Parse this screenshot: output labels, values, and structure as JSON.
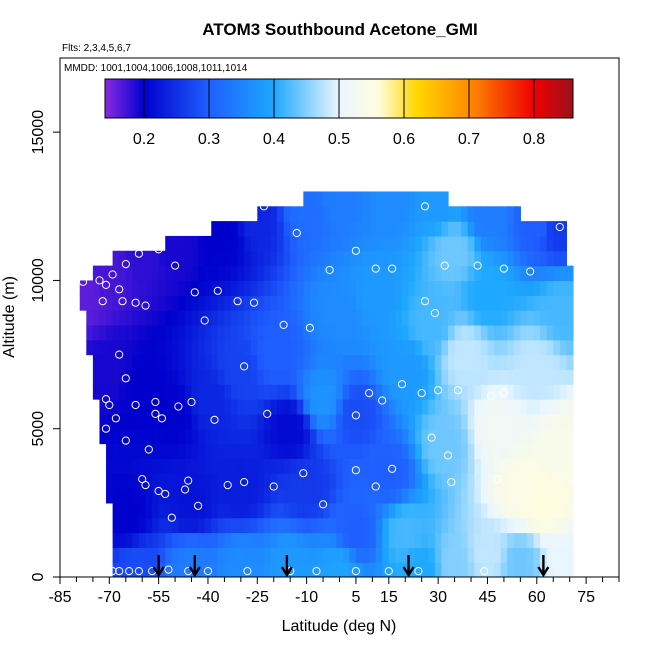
{
  "chart_data": {
    "type": "heatmap",
    "title": "ATOM3 Southbound Acetone_GMI",
    "flights_label": "Flts: 2,3,4,5,6,7",
    "mmdd_label": "MMDD: 1001,1004,1006,1008,1011,1014",
    "xlabel": "Latitude (deg N)",
    "ylabel": "Altitude (m)",
    "xlim": [
      -85,
      85
    ],
    "ylim": [
      0,
      17500
    ],
    "x_ticks": [
      -85,
      -70,
      -55,
      -40,
      -25,
      -10,
      5,
      15,
      30,
      45,
      60,
      75
    ],
    "x_minor_ticks": [
      -80,
      -75,
      -65,
      -60,
      -50,
      -45,
      -35,
      -30,
      -20,
      -15,
      -5,
      0,
      10,
      20,
      25,
      35,
      40,
      50,
      55,
      65,
      70,
      80,
      85
    ],
    "y_ticks": [
      0,
      5000,
      10000,
      15000
    ],
    "colorbar": {
      "range": [
        0.14,
        0.86
      ],
      "ticks": [
        0.2,
        0.3,
        0.4,
        0.5,
        0.6,
        0.7,
        0.8
      ],
      "tick_labels": [
        "0.2",
        "0.3",
        "0.4",
        "0.5",
        "0.6",
        "0.7",
        "0.8"
      ],
      "stops": [
        {
          "v": 0.14,
          "c": "#8a2be2"
        },
        {
          "v": 0.2,
          "c": "#0000cd"
        },
        {
          "v": 0.3,
          "c": "#1f5fff"
        },
        {
          "v": 0.4,
          "c": "#1ea8ff"
        },
        {
          "v": 0.5,
          "c": "#eaf6ff"
        },
        {
          "v": 0.56,
          "c": "#fffde0"
        },
        {
          "v": 0.62,
          "c": "#ffd700"
        },
        {
          "v": 0.7,
          "c": "#ff8c00"
        },
        {
          "v": 0.8,
          "c": "#ee0000"
        },
        {
          "v": 0.86,
          "c": "#9b111e"
        }
      ]
    },
    "field_boundary": {
      "upper": [
        [
          -80,
          10000
        ],
        [
          -75,
          10300
        ],
        [
          -70,
          10700
        ],
        [
          -65,
          10900
        ],
        [
          -55,
          11200
        ],
        [
          -45,
          11500
        ],
        [
          -35,
          11900
        ],
        [
          -25,
          12250
        ],
        [
          -15,
          12700
        ],
        [
          0,
          12900
        ],
        [
          15,
          12950
        ],
        [
          30,
          12800
        ],
        [
          45,
          12500
        ],
        [
          60,
          12150
        ],
        [
          68,
          11900
        ],
        [
          70,
          10500
        ]
      ],
      "lower_right": [
        [
          72,
          3000
        ],
        [
          72,
          0
        ]
      ],
      "lower_left": [
        [
          -68,
          0
        ],
        [
          -70,
          2500
        ],
        [
          -75,
          7000
        ],
        [
          -80,
          10000
        ]
      ]
    },
    "anchors": [
      {
        "lat": -78,
        "alt": 9500,
        "v": 0.16
      },
      {
        "lat": -70,
        "alt": 10300,
        "v": 0.17
      },
      {
        "lat": -60,
        "alt": 10900,
        "v": 0.18
      },
      {
        "lat": -50,
        "alt": 11200,
        "v": 0.19
      },
      {
        "lat": -35,
        "alt": 11500,
        "v": 0.2
      },
      {
        "lat": -25,
        "alt": 12000,
        "v": 0.24
      },
      {
        "lat": -10,
        "alt": 12500,
        "v": 0.32
      },
      {
        "lat": 0,
        "alt": 12800,
        "v": 0.34
      },
      {
        "lat": 15,
        "alt": 12700,
        "v": 0.36
      },
      {
        "lat": 30,
        "alt": 12700,
        "v": 0.38
      },
      {
        "lat": 45,
        "alt": 12200,
        "v": 0.34
      },
      {
        "lat": 60,
        "alt": 12000,
        "v": 0.3
      },
      {
        "lat": 67,
        "alt": 11800,
        "v": 0.26
      },
      {
        "lat": -70,
        "alt": 7000,
        "v": 0.19
      },
      {
        "lat": -60,
        "alt": 6500,
        "v": 0.2
      },
      {
        "lat": -50,
        "alt": 5500,
        "v": 0.2
      },
      {
        "lat": -40,
        "alt": 6000,
        "v": 0.24
      },
      {
        "lat": -30,
        "alt": 7000,
        "v": 0.27
      },
      {
        "lat": -20,
        "alt": 7500,
        "v": 0.3
      },
      {
        "lat": -15,
        "alt": 5000,
        "v": 0.21
      },
      {
        "lat": -10,
        "alt": 3000,
        "v": 0.26
      },
      {
        "lat": -30,
        "alt": 3000,
        "v": 0.23
      },
      {
        "lat": -45,
        "alt": 2500,
        "v": 0.22
      },
      {
        "lat": -65,
        "alt": 2000,
        "v": 0.2
      },
      {
        "lat": -62,
        "alt": 300,
        "v": 0.28
      },
      {
        "lat": -45,
        "alt": 300,
        "v": 0.34
      },
      {
        "lat": -30,
        "alt": 300,
        "v": 0.36
      },
      {
        "lat": -15,
        "alt": 300,
        "v": 0.38
      },
      {
        "lat": 0,
        "alt": 300,
        "v": 0.39
      },
      {
        "lat": 5,
        "alt": 1500,
        "v": 0.3
      },
      {
        "lat": 0,
        "alt": 9000,
        "v": 0.36
      },
      {
        "lat": -5,
        "alt": 6000,
        "v": 0.37
      },
      {
        "lat": 10,
        "alt": 9500,
        "v": 0.38
      },
      {
        "lat": 5,
        "alt": 5500,
        "v": 0.28
      },
      {
        "lat": 15,
        "alt": 3500,
        "v": 0.3
      },
      {
        "lat": 20,
        "alt": 7000,
        "v": 0.38
      },
      {
        "lat": 20,
        "alt": 1500,
        "v": 0.42
      },
      {
        "lat": 28,
        "alt": 8500,
        "v": 0.42
      },
      {
        "lat": 32,
        "alt": 4500,
        "v": 0.44
      },
      {
        "lat": 38,
        "alt": 7500,
        "v": 0.48
      },
      {
        "lat": 35,
        "alt": 11000,
        "v": 0.44
      },
      {
        "lat": 45,
        "alt": 9500,
        "v": 0.4
      },
      {
        "lat": 48,
        "alt": 5000,
        "v": 0.52
      },
      {
        "lat": 55,
        "alt": 3000,
        "v": 0.55
      },
      {
        "lat": 62,
        "alt": 2500,
        "v": 0.56
      },
      {
        "lat": 68,
        "alt": 4500,
        "v": 0.54
      },
      {
        "lat": 60,
        "alt": 7000,
        "v": 0.48
      },
      {
        "lat": 68,
        "alt": 9000,
        "v": 0.42
      },
      {
        "lat": 35,
        "alt": 500,
        "v": 0.45
      },
      {
        "lat": 45,
        "alt": 800,
        "v": 0.48
      },
      {
        "lat": 55,
        "alt": 500,
        "v": 0.44
      },
      {
        "lat": 68,
        "alt": 500,
        "v": 0.5
      },
      {
        "lat": 25,
        "alt": 300,
        "v": 0.4
      }
    ],
    "obs_points": [
      [
        -81,
        9950
      ],
      [
        -78,
        9950
      ],
      [
        -73,
        10000
      ],
      [
        -71,
        9850
      ],
      [
        -69,
        10200
      ],
      [
        -67,
        9700
      ],
      [
        -65,
        10550
      ],
      [
        -61,
        10900
      ],
      [
        -55,
        11050
      ],
      [
        -50,
        10500
      ],
      [
        -44,
        9600
      ],
      [
        -41,
        8650
      ],
      [
        -72,
        9300
      ],
      [
        -66,
        9300
      ],
      [
        -62,
        9250
      ],
      [
        -59,
        9150
      ],
      [
        -67,
        7500
      ],
      [
        -65,
        6700
      ],
      [
        -71,
        6000
      ],
      [
        -70,
        5800
      ],
      [
        -62,
        5800
      ],
      [
        -56,
        5500
      ],
      [
        -54,
        5350
      ],
      [
        -68,
        5350
      ],
      [
        -71,
        5000
      ],
      [
        -65,
        4600
      ],
      [
        -58,
        4300
      ],
      [
        -60,
        3300
      ],
      [
        -59,
        3100
      ],
      [
        -55,
        2900
      ],
      [
        -53,
        2800
      ],
      [
        -46,
        3250
      ],
      [
        -47,
        2950
      ],
      [
        -51,
        2000
      ],
      [
        -43,
        2400
      ],
      [
        -34,
        3100
      ],
      [
        -29,
        3200
      ],
      [
        -20,
        3050
      ],
      [
        -11,
        3500
      ],
      [
        -5,
        2450
      ],
      [
        -31,
        9300
      ],
      [
        -26,
        9250
      ],
      [
        -37,
        9650
      ],
      [
        -23,
        12500
      ],
      [
        -13,
        11600
      ],
      [
        -17,
        8500
      ],
      [
        -9,
        8400
      ],
      [
        -22,
        5500
      ],
      [
        -29,
        7100
      ],
      [
        -38,
        5300
      ],
      [
        -45,
        5900
      ],
      [
        -49,
        5750
      ],
      [
        -56,
        5900
      ],
      [
        -3,
        10350
      ],
      [
        5,
        11000
      ],
      [
        11,
        10400
      ],
      [
        16,
        10400
      ],
      [
        26,
        9300
      ],
      [
        29,
        8900
      ],
      [
        32,
        10500
      ],
      [
        42,
        10500
      ],
      [
        50,
        10400
      ],
      [
        58,
        10300
      ],
      [
        67,
        11800
      ],
      [
        26,
        12500
      ],
      [
        9,
        6200
      ],
      [
        13,
        5950
      ],
      [
        19,
        6500
      ],
      [
        25,
        6200
      ],
      [
        28,
        4700
      ],
      [
        33,
        4100
      ],
      [
        34,
        3200
      ],
      [
        30,
        6300
      ],
      [
        36,
        6300
      ],
      [
        46,
        6100
      ],
      [
        50,
        6200
      ],
      [
        16,
        3650
      ],
      [
        11,
        3050
      ],
      [
        5,
        3600
      ],
      [
        5,
        5450
      ],
      [
        -69,
        200
      ],
      [
        -67,
        200
      ],
      [
        -64,
        200
      ],
      [
        -61,
        200
      ],
      [
        -57,
        200
      ],
      [
        -52,
        250
      ],
      [
        -46,
        200
      ],
      [
        -40,
        200
      ],
      [
        -28,
        200
      ],
      [
        -15,
        200
      ],
      [
        -7,
        200
      ],
      [
        5,
        200
      ],
      [
        15,
        200
      ],
      [
        24,
        200
      ],
      [
        44,
        200
      ],
      [
        72,
        3200
      ],
      [
        48,
        3300
      ]
    ],
    "flight_markers": [
      -55,
      -44,
      -16,
      21,
      62
    ]
  }
}
